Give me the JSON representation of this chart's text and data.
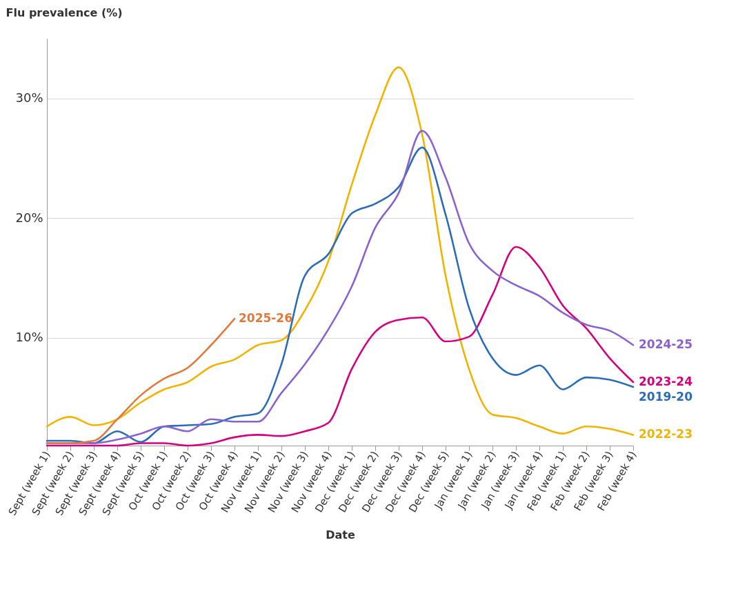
{
  "chart_data": {
    "type": "line",
    "ylabel": "Flu prevalence (%)",
    "xlabel": "Date",
    "categories": [
      "Sept (week 1)",
      "Sept (week 2)",
      "Sept (week 3)",
      "Sept (week 4)",
      "Sept (week 5)",
      "Oct (week 1)",
      "Oct (week 2)",
      "Oct (week 3)",
      "Oct (week 4)",
      "Nov (week 1)",
      "Nov (week 2)",
      "Nov (week 3)",
      "Nov (week 4)",
      "Dec (week 1)",
      "Dec (week 2)",
      "Dec (week 3)",
      "Dec (week 4)",
      "Dec (week 5)",
      "Jan (week 1)",
      "Jan (week 2)",
      "Jan (week 3)",
      "Jan (week 4)",
      "Feb (week 1)",
      "Feb (week 2)",
      "Feb (week 3)",
      "Feb (week 4)"
    ],
    "series": [
      {
        "name": "2022-23",
        "color": "#f0b400",
        "values": [
          2.6,
          3.4,
          2.7,
          3.2,
          4.6,
          5.7,
          6.3,
          7.6,
          8.2,
          9.4,
          9.8,
          12.3,
          16.4,
          22.8,
          28.6,
          32.6,
          27.0,
          15.2,
          7.4,
          3.6,
          3.3,
          2.6,
          2.0,
          2.6,
          2.4,
          1.9
        ]
      },
      {
        "name": "2023-24",
        "color": "#d4007f",
        "values": [
          1.0,
          1.0,
          1.0,
          1.0,
          1.2,
          1.2,
          1.0,
          1.2,
          1.7,
          1.9,
          1.8,
          2.2,
          2.9,
          7.4,
          10.5,
          11.5,
          11.7,
          9.7,
          10.1,
          13.6,
          17.6,
          15.9,
          12.7,
          10.8,
          8.3,
          6.3
        ]
      },
      {
        "name": "2019-20",
        "color": "#2b6cb8",
        "values": [
          1.4,
          1.4,
          1.2,
          2.2,
          1.3,
          2.6,
          2.7,
          2.8,
          3.4,
          3.7,
          7.8,
          15.2,
          17.0,
          20.4,
          21.2,
          22.6,
          25.9,
          20.3,
          12.5,
          8.3,
          6.9,
          7.7,
          5.7,
          6.7,
          6.5,
          5.9
        ]
      },
      {
        "name": "2024-25",
        "color": "#8a62cf",
        "values": [
          1.2,
          1.2,
          1.2,
          1.5,
          2.0,
          2.6,
          2.2,
          3.2,
          3.0,
          3.0,
          5.4,
          7.8,
          10.7,
          14.3,
          19.2,
          22.1,
          27.3,
          23.4,
          17.9,
          15.6,
          14.4,
          13.5,
          12.1,
          11.1,
          10.6,
          9.4
        ]
      },
      {
        "name": "2025-26",
        "color": "#e07a3a",
        "values": [
          1.2,
          1.2,
          1.4,
          3.2,
          5.2,
          6.6,
          7.5,
          9.4,
          11.6,
          null,
          null,
          null,
          null,
          null,
          null,
          null,
          null,
          null,
          null,
          null,
          null,
          null,
          null,
          null,
          null,
          null
        ]
      }
    ],
    "ylim": [
      1,
      35
    ],
    "yticks": [
      {
        "value": 10,
        "label": "10%"
      },
      {
        "value": 20,
        "label": "20%"
      },
      {
        "value": 30,
        "label": "30%"
      }
    ],
    "grid": "y",
    "legend": false
  }
}
